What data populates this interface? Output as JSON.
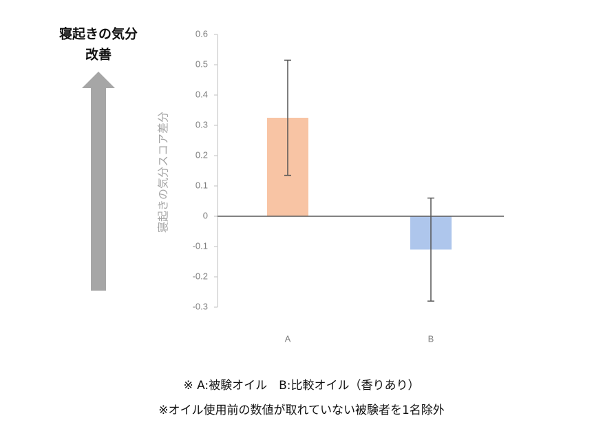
{
  "chart_data": {
    "type": "bar",
    "y_label": "寝起きの気分スコア差分",
    "categories": [
      "A",
      "B"
    ],
    "values": [
      0.325,
      -0.11
    ],
    "errors": [
      0.19,
      0.17
    ],
    "colors": [
      "#f8c4a4",
      "#aec6ec"
    ],
    "ylim": [
      -0.3,
      0.6
    ],
    "yticks": [
      -0.3,
      -0.2,
      -0.1,
      0,
      0.1,
      0.2,
      0.3,
      0.4,
      0.5,
      0.6
    ],
    "annotation": [
      "寝起きの気分",
      "改善"
    ],
    "notes": [
      "※ A:被験オイル　B:比較オイル（香りあり）",
      "※オイル使用前の数値が取れていない被験者を1名除外"
    ]
  }
}
